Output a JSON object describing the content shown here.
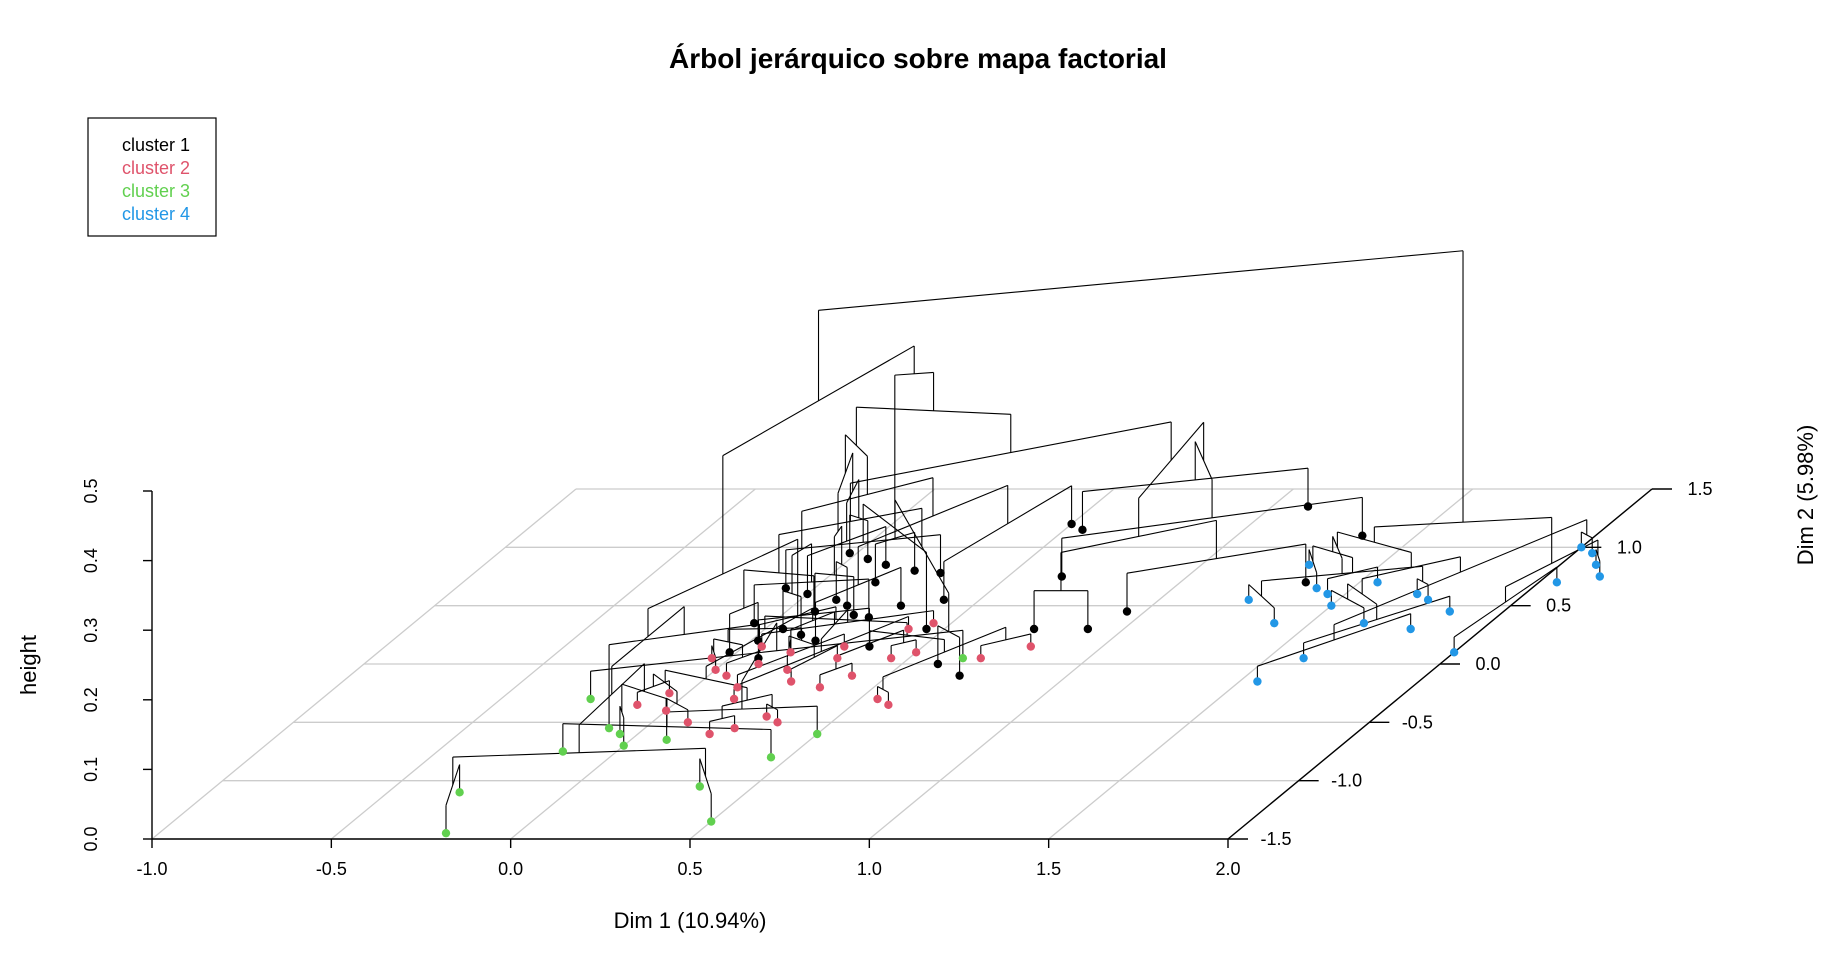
{
  "chart_data": {
    "type": "scatter",
    "subtype": "3d-dendrogram-on-factor-map",
    "title": "Árbol jerárquico sobre mapa factorial",
    "xlabel": "Dim 1 (10.94%)",
    "ylabel": "Dim 2 (5.98%)",
    "zlabel": "height",
    "xlim": [
      -1.0,
      2.0
    ],
    "ylim": [
      -1.5,
      1.5
    ],
    "zlim": [
      0.0,
      0.5
    ],
    "x_ticks": [
      "-1.0",
      "-0.5",
      "0.0",
      "0.5",
      "1.0",
      "1.5",
      "2.0"
    ],
    "y_ticks": [
      "-1.5",
      "-1.0",
      "-0.5",
      "0.0",
      "0.5",
      "1.0",
      "1.5"
    ],
    "z_ticks": [
      "0.0",
      "0.1",
      "0.2",
      "0.3",
      "0.4",
      "0.5"
    ],
    "grid": true,
    "legend_position": "top-left",
    "legend": [
      {
        "label": "cluster 1",
        "color": "#000000"
      },
      {
        "label": "cluster 2",
        "color": "#DF536B"
      },
      {
        "label": "cluster 3",
        "color": "#61D04F"
      },
      {
        "label": "cluster 4",
        "color": "#2297E6"
      }
    ],
    "series": [
      {
        "name": "cluster 1",
        "color": "#000000",
        "points": [
          [
            -0.02,
            0.95
          ],
          [
            0.05,
            0.9
          ],
          [
            0.12,
            0.85
          ],
          [
            0.0,
            0.6
          ],
          [
            0.1,
            0.55
          ],
          [
            0.15,
            0.5
          ],
          [
            0.08,
            0.45
          ],
          [
            0.2,
            0.42
          ],
          [
            0.25,
            0.4
          ],
          [
            -0.05,
            0.35
          ],
          [
            0.05,
            0.3
          ],
          [
            0.12,
            0.25
          ],
          [
            0.18,
            0.2
          ],
          [
            0.3,
            0.5
          ],
          [
            0.4,
            0.55
          ],
          [
            0.5,
            1.2
          ],
          [
            0.55,
            1.15
          ],
          [
            1.1,
            1.35
          ],
          [
            1.35,
            1.1
          ],
          [
            0.65,
            0.75
          ],
          [
            0.75,
            0.3
          ],
          [
            0.9,
            0.3
          ],
          [
            0.95,
            0.45
          ],
          [
            1.35,
            0.7
          ],
          [
            0.02,
            0.2
          ],
          [
            -0.02,
            0.1
          ],
          [
            0.08,
            0.05
          ],
          [
            0.35,
            0.15
          ],
          [
            0.6,
            0.0
          ],
          [
            0.7,
            -0.1
          ],
          [
            0.15,
            0.7
          ],
          [
            0.22,
            0.8
          ],
          [
            0.3,
            0.78
          ],
          [
            -0.08,
            0.65
          ],
          [
            0.45,
            0.3
          ]
        ]
      },
      {
        "name": "cluster 2",
        "color": "#DF536B",
        "points": [
          [
            -0.05,
            0.05
          ],
          [
            0.0,
            -0.05
          ],
          [
            0.05,
            -0.1
          ],
          [
            0.1,
            0.0
          ],
          [
            0.15,
            0.1
          ],
          [
            0.2,
            -0.05
          ],
          [
            0.25,
            -0.15
          ],
          [
            0.3,
            0.05
          ],
          [
            0.35,
            -0.2
          ],
          [
            0.4,
            -0.1
          ],
          [
            0.45,
            0.05
          ],
          [
            0.5,
            0.1
          ],
          [
            0.55,
            -0.3
          ],
          [
            0.6,
            -0.35
          ],
          [
            0.7,
            0.05
          ],
          [
            0.8,
            0.15
          ],
          [
            0.3,
            -0.45
          ],
          [
            0.35,
            -0.5
          ],
          [
            0.25,
            -0.55
          ],
          [
            0.2,
            -0.6
          ],
          [
            0.1,
            -0.5
          ],
          [
            0.0,
            -0.4
          ],
          [
            -0.05,
            -0.25
          ],
          [
            -0.1,
            -0.35
          ],
          [
            0.15,
            -0.3
          ],
          [
            0.4,
            0.3
          ],
          [
            0.45,
            0.35
          ],
          [
            0.05,
            0.15
          ],
          [
            0.12,
            -0.2
          ],
          [
            0.28,
            0.15
          ]
        ]
      },
      {
        "name": "cluster 3",
        "color": "#61D04F",
        "points": [
          [
            -0.3,
            -1.1
          ],
          [
            -0.2,
            -1.45
          ],
          [
            0.35,
            -1.05
          ],
          [
            0.5,
            -1.35
          ],
          [
            0.45,
            -0.8
          ],
          [
            -0.15,
            -0.75
          ],
          [
            -0.05,
            -0.6
          ],
          [
            0.0,
            -0.7
          ],
          [
            0.1,
            -0.65
          ],
          [
            0.5,
            -0.6
          ],
          [
            0.65,
            0.05
          ],
          [
            -0.25,
            -0.3
          ],
          [
            -0.1,
            -0.55
          ]
        ]
      },
      {
        "name": "cluster 4",
        "color": "#2297E6",
        "points": [
          [
            1.3,
            0.85
          ],
          [
            1.4,
            0.65
          ],
          [
            1.55,
            0.7
          ],
          [
            1.45,
            0.6
          ],
          [
            1.7,
            0.6
          ],
          [
            1.75,
            0.55
          ],
          [
            1.25,
            0.55
          ],
          [
            1.4,
            0.35
          ],
          [
            1.5,
            0.5
          ],
          [
            1.65,
            0.35
          ],
          [
            1.85,
            0.45
          ],
          [
            1.6,
            0.05
          ],
          [
            1.55,
            -0.15
          ],
          [
            1.8,
            0.3
          ],
          [
            2.0,
            1.0
          ],
          [
            2.05,
            0.95
          ],
          [
            2.1,
            0.85
          ],
          [
            2.15,
            0.75
          ],
          [
            2.05,
            0.7
          ],
          [
            2.0,
            0.1
          ]
        ]
      }
    ]
  }
}
